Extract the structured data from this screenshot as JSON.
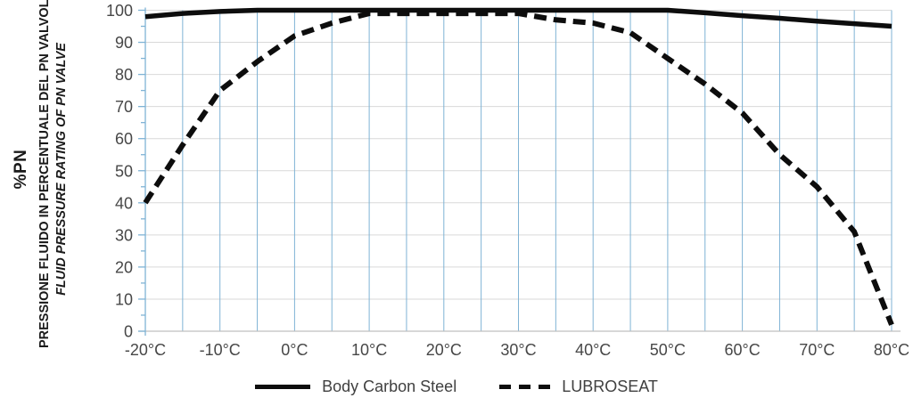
{
  "y_axis_title": {
    "unit": "%PN",
    "line_it": "PRESSIONE FLUIDO IN PERCENTUALE DEL PN VALVOLA",
    "line_en": "FLUID PRESSURE RATING OF PN VALVE"
  },
  "chart_data": {
    "type": "line",
    "title": "",
    "xlabel": "",
    "ylabel": "%PN - FLUID PRESSURE RATING OF PN VALVE",
    "xlim": [
      -20,
      80
    ],
    "ylim": [
      0,
      100
    ],
    "x_grid_step": 5,
    "x_tick_step": 10,
    "y_tick_step": 10,
    "y_minor_tick_step": 5,
    "grid_on": true,
    "legend_position": "bottom-center",
    "x_tick_labels": [
      "-20°C",
      "-10°C",
      "0°C",
      "10°C",
      "20°C",
      "30°C",
      "40°C",
      "50°C",
      "60°C",
      "70°C",
      "80°C"
    ],
    "y_tick_labels": [
      "0",
      "10",
      "20",
      "30",
      "40",
      "50",
      "60",
      "70",
      "80",
      "90",
      "100"
    ],
    "x": [
      -20,
      -15,
      -10,
      -5,
      0,
      5,
      10,
      15,
      20,
      25,
      30,
      35,
      40,
      45,
      50,
      55,
      60,
      65,
      70,
      75,
      80
    ],
    "series": [
      {
        "name": "Body Carbon Steel",
        "line_style": "solid",
        "color": "#0d0d0d",
        "values": [
          98,
          99,
          99.6,
          100,
          100,
          100,
          100,
          100,
          100,
          100,
          100,
          100,
          100,
          100,
          100,
          99.2,
          98.3,
          97.5,
          96.6,
          95.8,
          95
        ]
      },
      {
        "name": "LUBROSEAT",
        "line_style": "dashed",
        "color": "#0d0d0d",
        "values": [
          40,
          58,
          75,
          84,
          92,
          96,
          99,
          99,
          99,
          99,
          99,
          97,
          96,
          93,
          85,
          77,
          68,
          55,
          45,
          31,
          2
        ]
      }
    ],
    "grid_color_vertical": "#7fb3d5",
    "grid_color_horizontal": "#d9d9d9",
    "axis_line_color": "#bfbfbf",
    "tick_label_color": "#474747"
  }
}
